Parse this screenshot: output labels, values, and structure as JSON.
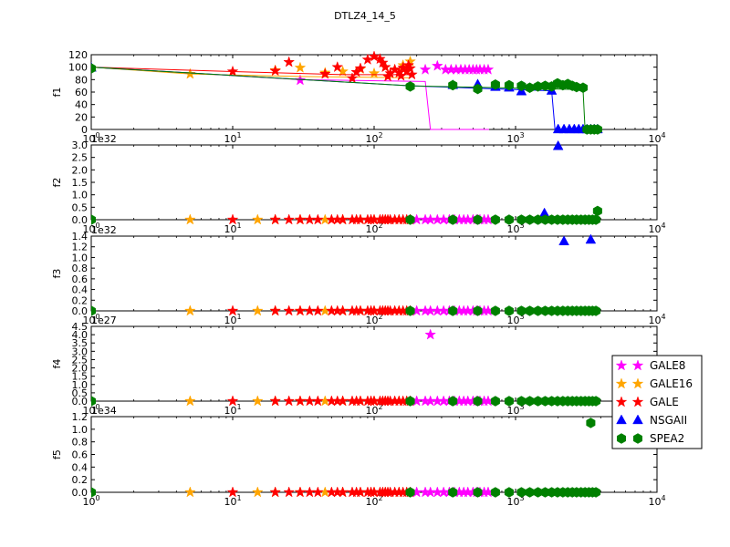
{
  "title": "DTLZ4_14_5",
  "colors": {
    "GALE8": "#ff00ff",
    "GALE16": "#ffa500",
    "GALE": "#ff0000",
    "NSGAII": "#0000ff",
    "SPEA2": "#008000"
  },
  "legend": {
    "placement": "right",
    "entries": [
      {
        "label": "GALE8",
        "marker": "star",
        "series": "GALE8"
      },
      {
        "label": "GALE16",
        "marker": "star",
        "series": "GALE16"
      },
      {
        "label": "GALE",
        "marker": "star",
        "series": "GALE"
      },
      {
        "label": "NSGAII",
        "marker": "triangle",
        "series": "NSGAII"
      },
      {
        "label": "SPEA2",
        "marker": "hexagon",
        "series": "SPEA2"
      }
    ]
  },
  "chart_data": [
    {
      "type": "line",
      "ylabel": "f1",
      "xscale": "log",
      "xlim": [
        1,
        10000
      ],
      "ylim": [
        0,
        120
      ],
      "yticks": [
        "0",
        "20",
        "40",
        "60",
        "80",
        "100",
        "120"
      ],
      "ytick_values": [
        0,
        20,
        40,
        60,
        80,
        100,
        120
      ],
      "offset": "",
      "xticks": [
        "10^0",
        "10^1",
        "10^2",
        "10^3",
        "10^4"
      ],
      "series": [
        {
          "name": "GALE8",
          "marker": "star",
          "line": [
            [
              1,
              100
            ],
            [
              30,
              80
            ],
            [
              230,
              77
            ],
            [
              250,
              0
            ],
            [
              650,
              0
            ]
          ],
          "points": [
            [
              30,
              79
            ],
            [
              230,
              96
            ],
            [
              280,
              102
            ],
            [
              320,
              96
            ],
            [
              350,
              96
            ],
            [
              380,
              96
            ],
            [
              410,
              96
            ],
            [
              440,
              96
            ],
            [
              470,
              96
            ],
            [
              500,
              96
            ],
            [
              530,
              96
            ],
            [
              560,
              96
            ],
            [
              600,
              96
            ],
            [
              640,
              96
            ]
          ]
        },
        {
          "name": "GALE16",
          "marker": "star",
          "line": [
            [
              1,
              100
            ],
            [
              5,
              89
            ],
            [
              30,
              85
            ],
            [
              180,
              83
            ]
          ],
          "points": [
            [
              5,
              89
            ],
            [
              20,
              95
            ],
            [
              30,
              99
            ],
            [
              45,
              91
            ],
            [
              60,
              93
            ],
            [
              80,
              97
            ],
            [
              100,
              90
            ],
            [
              120,
              100
            ],
            [
              140,
              96
            ],
            [
              160,
              103
            ],
            [
              180,
              109
            ]
          ]
        },
        {
          "name": "GALE",
          "marker": "star",
          "line": [
            [
              1,
              100
            ],
            [
              10,
              93
            ],
            [
              60,
              88
            ],
            [
              180,
              88
            ]
          ],
          "points": [
            [
              10,
              93
            ],
            [
              20,
              94
            ],
            [
              25,
              108
            ],
            [
              45,
              89
            ],
            [
              55,
              100
            ],
            [
              70,
              82
            ],
            [
              75,
              92
            ],
            [
              80,
              98
            ],
            [
              90,
              112
            ],
            [
              100,
              117
            ],
            [
              110,
              113
            ],
            [
              115,
              107
            ],
            [
              120,
              100
            ],
            [
              125,
              85
            ],
            [
              130,
              90
            ],
            [
              140,
              96
            ],
            [
              150,
              91
            ],
            [
              155,
              86
            ],
            [
              160,
              99
            ],
            [
              170,
              93
            ],
            [
              175,
              103
            ],
            [
              180,
              98
            ],
            [
              185,
              88
            ]
          ]
        },
        {
          "name": "NSGAII",
          "marker": "triangle",
          "line": [
            [
              1,
              100
            ],
            [
              180,
              70
            ],
            [
              1800,
              62
            ],
            [
              1900,
              0
            ],
            [
              3500,
              0
            ]
          ],
          "points": [
            [
              1,
              99
            ],
            [
              360,
              71
            ],
            [
              540,
              72
            ],
            [
              720,
              68
            ],
            [
              900,
              67
            ],
            [
              1100,
              61
            ],
            [
              1800,
              62
            ],
            [
              2000,
              0
            ],
            [
              2200,
              0
            ],
            [
              2400,
              0
            ],
            [
              2600,
              0
            ],
            [
              2800,
              0
            ],
            [
              3000,
              0
            ],
            [
              3200,
              0
            ],
            [
              3400,
              0
            ],
            [
              3600,
              0
            ],
            [
              3800,
              0
            ]
          ]
        },
        {
          "name": "SPEA2",
          "marker": "hexagon",
          "line": [
            [
              1,
              100
            ],
            [
              180,
              70
            ],
            [
              3000,
              64
            ],
            [
              3100,
              0
            ],
            [
              3800,
              0
            ]
          ],
          "points": [
            [
              1,
              98
            ],
            [
              180,
              69
            ],
            [
              360,
              71
            ],
            [
              540,
              65
            ],
            [
              720,
              72
            ],
            [
              900,
              71
            ],
            [
              1100,
              70
            ],
            [
              1260,
              67
            ],
            [
              1440,
              69
            ],
            [
              1620,
              70
            ],
            [
              1800,
              69
            ],
            [
              1980,
              74
            ],
            [
              2160,
              71
            ],
            [
              2340,
              73
            ],
            [
              2520,
              70
            ],
            [
              2700,
              68
            ],
            [
              3000,
              67
            ],
            [
              3200,
              0
            ],
            [
              3400,
              0
            ],
            [
              3600,
              0
            ],
            [
              3800,
              0
            ]
          ]
        }
      ]
    },
    {
      "type": "scatter",
      "ylabel": "f2",
      "xscale": "log",
      "xlim": [
        1,
        10000
      ],
      "ylim": [
        0,
        3.0
      ],
      "yticks": [
        "0.0",
        "0.5",
        "1.0",
        "1.5",
        "2.0",
        "2.5",
        "3.0"
      ],
      "ytick_values": [
        0,
        0.5,
        1.0,
        1.5,
        2.0,
        2.5,
        3.0
      ],
      "offset": "1e32",
      "xticks": [
        "10^0",
        "10^1",
        "10^2",
        "10^3",
        "10^4"
      ],
      "series": [
        {
          "name": "NSGAII",
          "marker": "triangle",
          "points": [
            [
              1600,
              0.25
            ],
            [
              2000,
              2.95
            ]
          ]
        },
        {
          "name": "SPEA2",
          "marker": "hexagon",
          "points": [
            [
              3800,
              0.35
            ]
          ]
        }
      ]
    },
    {
      "type": "scatter",
      "ylabel": "f3",
      "xscale": "log",
      "xlim": [
        1,
        10000
      ],
      "ylim": [
        0,
        1.4
      ],
      "yticks": [
        "0.0",
        "0.2",
        "0.4",
        "0.6",
        "0.8",
        "1.0",
        "1.2",
        "1.4"
      ],
      "ytick_values": [
        0,
        0.2,
        0.4,
        0.6,
        0.8,
        1.0,
        1.2,
        1.4
      ],
      "offset": "1e32",
      "xticks": [
        "10^0",
        "10^1",
        "10^2",
        "10^3",
        "10^4"
      ],
      "series": [
        {
          "name": "NSGAII",
          "marker": "triangle",
          "points": [
            [
              2200,
              1.3
            ],
            [
              3400,
              1.33
            ]
          ]
        }
      ]
    },
    {
      "type": "scatter",
      "ylabel": "f4",
      "xscale": "log",
      "xlim": [
        1,
        10000
      ],
      "ylim": [
        0,
        4.5
      ],
      "yticks": [
        "0.0",
        "0.5",
        "1.0",
        "1.5",
        "2.0",
        "2.5",
        "3.0",
        "3.5",
        "4.0",
        "4.5"
      ],
      "ytick_values": [
        0,
        0.5,
        1.0,
        1.5,
        2.0,
        2.5,
        3.0,
        3.5,
        4.0,
        4.5
      ],
      "offset": "1e27",
      "xticks": [
        "10^0",
        "10^1",
        "10^2",
        "10^3",
        "10^4"
      ],
      "series": [
        {
          "name": "GALE8",
          "marker": "star",
          "points": [
            [
              250,
              4.0
            ]
          ]
        }
      ]
    },
    {
      "type": "scatter",
      "ylabel": "f5",
      "xscale": "log",
      "xlim": [
        1,
        10000
      ],
      "ylim": [
        0,
        1.2
      ],
      "yticks": [
        "0.0",
        "0.2",
        "0.4",
        "0.6",
        "0.8",
        "1.0",
        "1.2"
      ],
      "ytick_values": [
        0,
        0.2,
        0.4,
        0.6,
        0.8,
        1.0,
        1.2
      ],
      "offset": "1e34",
      "xticks": [
        "10^0",
        "10^1",
        "10^2",
        "10^3",
        "10^4"
      ],
      "series": [
        {
          "name": "SPEA2",
          "marker": "hexagon",
          "points": [
            [
              3400,
              1.1
            ]
          ]
        }
      ]
    }
  ]
}
